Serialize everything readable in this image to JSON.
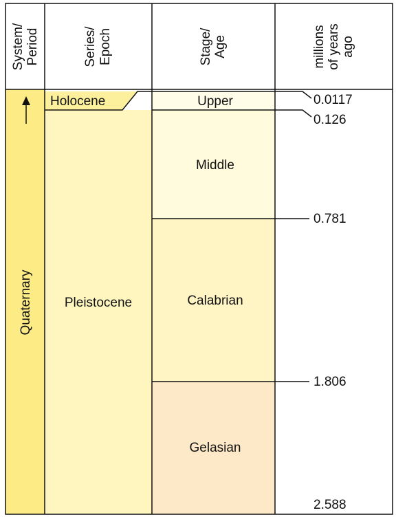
{
  "header": {
    "columns": [
      [
        "System/",
        "Period"
      ],
      [
        "Series/",
        "Epoch"
      ],
      [
        "Stage/",
        "Age"
      ],
      [
        "millions",
        "of years",
        "ago"
      ]
    ]
  },
  "period": {
    "label": "Quaternary"
  },
  "epochs": [
    {
      "label": "Holocene"
    },
    {
      "label": "Pleistocene"
    }
  ],
  "stages": [
    {
      "label": "Upper"
    },
    {
      "label": "Middle"
    },
    {
      "label": "Calabrian"
    },
    {
      "label": "Gelasian"
    }
  ],
  "ages": [
    "0.0117",
    "0.126",
    "0.781",
    "1.806",
    "2.588"
  ]
}
